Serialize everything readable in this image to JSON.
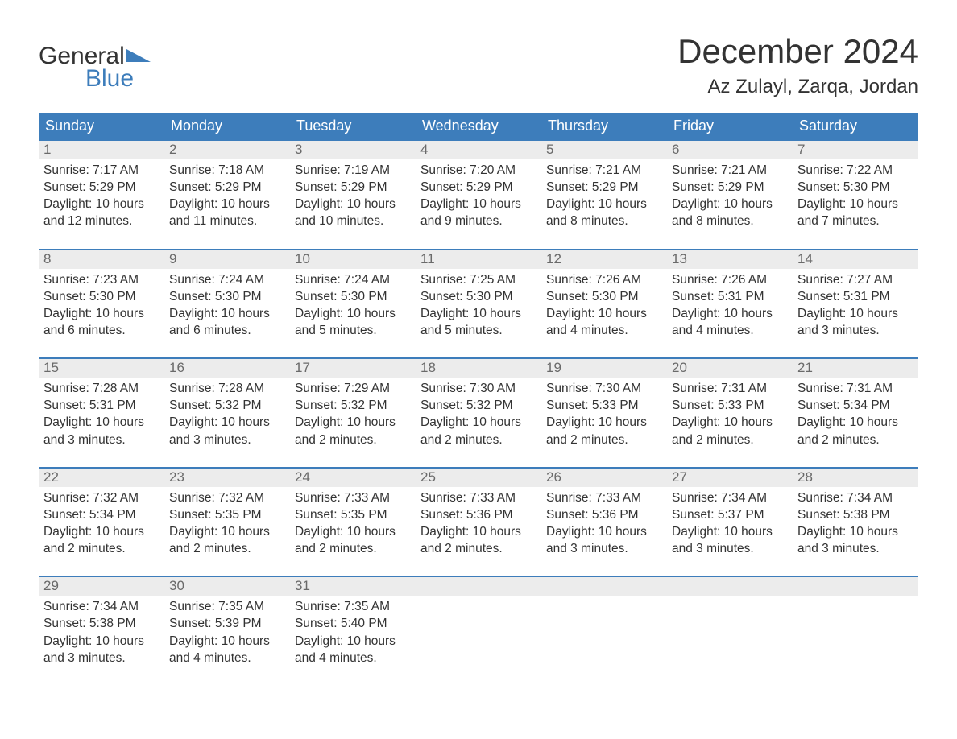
{
  "logo": {
    "word1": "General",
    "word2": "Blue"
  },
  "title": "December 2024",
  "location": "Az Zulayl, Zarqa, Jordan",
  "colors": {
    "header_bg": "#3d7dbb",
    "header_text": "#ffffff",
    "daynum_bg": "#ececec",
    "daynum_text": "#6a6a6a",
    "body_text": "#333333",
    "divider": "#3d7dbb",
    "page_bg": "#ffffff"
  },
  "daysOfWeek": [
    "Sunday",
    "Monday",
    "Tuesday",
    "Wednesday",
    "Thursday",
    "Friday",
    "Saturday"
  ],
  "weeks": [
    [
      {
        "n": "1",
        "sunrise": "Sunrise: 7:17 AM",
        "sunset": "Sunset: 5:29 PM",
        "d1": "Daylight: 10 hours",
        "d2": "and 12 minutes."
      },
      {
        "n": "2",
        "sunrise": "Sunrise: 7:18 AM",
        "sunset": "Sunset: 5:29 PM",
        "d1": "Daylight: 10 hours",
        "d2": "and 11 minutes."
      },
      {
        "n": "3",
        "sunrise": "Sunrise: 7:19 AM",
        "sunset": "Sunset: 5:29 PM",
        "d1": "Daylight: 10 hours",
        "d2": "and 10 minutes."
      },
      {
        "n": "4",
        "sunrise": "Sunrise: 7:20 AM",
        "sunset": "Sunset: 5:29 PM",
        "d1": "Daylight: 10 hours",
        "d2": "and 9 minutes."
      },
      {
        "n": "5",
        "sunrise": "Sunrise: 7:21 AM",
        "sunset": "Sunset: 5:29 PM",
        "d1": "Daylight: 10 hours",
        "d2": "and 8 minutes."
      },
      {
        "n": "6",
        "sunrise": "Sunrise: 7:21 AM",
        "sunset": "Sunset: 5:29 PM",
        "d1": "Daylight: 10 hours",
        "d2": "and 8 minutes."
      },
      {
        "n": "7",
        "sunrise": "Sunrise: 7:22 AM",
        "sunset": "Sunset: 5:30 PM",
        "d1": "Daylight: 10 hours",
        "d2": "and 7 minutes."
      }
    ],
    [
      {
        "n": "8",
        "sunrise": "Sunrise: 7:23 AM",
        "sunset": "Sunset: 5:30 PM",
        "d1": "Daylight: 10 hours",
        "d2": "and 6 minutes."
      },
      {
        "n": "9",
        "sunrise": "Sunrise: 7:24 AM",
        "sunset": "Sunset: 5:30 PM",
        "d1": "Daylight: 10 hours",
        "d2": "and 6 minutes."
      },
      {
        "n": "10",
        "sunrise": "Sunrise: 7:24 AM",
        "sunset": "Sunset: 5:30 PM",
        "d1": "Daylight: 10 hours",
        "d2": "and 5 minutes."
      },
      {
        "n": "11",
        "sunrise": "Sunrise: 7:25 AM",
        "sunset": "Sunset: 5:30 PM",
        "d1": "Daylight: 10 hours",
        "d2": "and 5 minutes."
      },
      {
        "n": "12",
        "sunrise": "Sunrise: 7:26 AM",
        "sunset": "Sunset: 5:30 PM",
        "d1": "Daylight: 10 hours",
        "d2": "and 4 minutes."
      },
      {
        "n": "13",
        "sunrise": "Sunrise: 7:26 AM",
        "sunset": "Sunset: 5:31 PM",
        "d1": "Daylight: 10 hours",
        "d2": "and 4 minutes."
      },
      {
        "n": "14",
        "sunrise": "Sunrise: 7:27 AM",
        "sunset": "Sunset: 5:31 PM",
        "d1": "Daylight: 10 hours",
        "d2": "and 3 minutes."
      }
    ],
    [
      {
        "n": "15",
        "sunrise": "Sunrise: 7:28 AM",
        "sunset": "Sunset: 5:31 PM",
        "d1": "Daylight: 10 hours",
        "d2": "and 3 minutes."
      },
      {
        "n": "16",
        "sunrise": "Sunrise: 7:28 AM",
        "sunset": "Sunset: 5:32 PM",
        "d1": "Daylight: 10 hours",
        "d2": "and 3 minutes."
      },
      {
        "n": "17",
        "sunrise": "Sunrise: 7:29 AM",
        "sunset": "Sunset: 5:32 PM",
        "d1": "Daylight: 10 hours",
        "d2": "and 2 minutes."
      },
      {
        "n": "18",
        "sunrise": "Sunrise: 7:30 AM",
        "sunset": "Sunset: 5:32 PM",
        "d1": "Daylight: 10 hours",
        "d2": "and 2 minutes."
      },
      {
        "n": "19",
        "sunrise": "Sunrise: 7:30 AM",
        "sunset": "Sunset: 5:33 PM",
        "d1": "Daylight: 10 hours",
        "d2": "and 2 minutes."
      },
      {
        "n": "20",
        "sunrise": "Sunrise: 7:31 AM",
        "sunset": "Sunset: 5:33 PM",
        "d1": "Daylight: 10 hours",
        "d2": "and 2 minutes."
      },
      {
        "n": "21",
        "sunrise": "Sunrise: 7:31 AM",
        "sunset": "Sunset: 5:34 PM",
        "d1": "Daylight: 10 hours",
        "d2": "and 2 minutes."
      }
    ],
    [
      {
        "n": "22",
        "sunrise": "Sunrise: 7:32 AM",
        "sunset": "Sunset: 5:34 PM",
        "d1": "Daylight: 10 hours",
        "d2": "and 2 minutes."
      },
      {
        "n": "23",
        "sunrise": "Sunrise: 7:32 AM",
        "sunset": "Sunset: 5:35 PM",
        "d1": "Daylight: 10 hours",
        "d2": "and 2 minutes."
      },
      {
        "n": "24",
        "sunrise": "Sunrise: 7:33 AM",
        "sunset": "Sunset: 5:35 PM",
        "d1": "Daylight: 10 hours",
        "d2": "and 2 minutes."
      },
      {
        "n": "25",
        "sunrise": "Sunrise: 7:33 AM",
        "sunset": "Sunset: 5:36 PM",
        "d1": "Daylight: 10 hours",
        "d2": "and 2 minutes."
      },
      {
        "n": "26",
        "sunrise": "Sunrise: 7:33 AM",
        "sunset": "Sunset: 5:36 PM",
        "d1": "Daylight: 10 hours",
        "d2": "and 3 minutes."
      },
      {
        "n": "27",
        "sunrise": "Sunrise: 7:34 AM",
        "sunset": "Sunset: 5:37 PM",
        "d1": "Daylight: 10 hours",
        "d2": "and 3 minutes."
      },
      {
        "n": "28",
        "sunrise": "Sunrise: 7:34 AM",
        "sunset": "Sunset: 5:38 PM",
        "d1": "Daylight: 10 hours",
        "d2": "and 3 minutes."
      }
    ],
    [
      {
        "n": "29",
        "sunrise": "Sunrise: 7:34 AM",
        "sunset": "Sunset: 5:38 PM",
        "d1": "Daylight: 10 hours",
        "d2": "and 3 minutes."
      },
      {
        "n": "30",
        "sunrise": "Sunrise: 7:35 AM",
        "sunset": "Sunset: 5:39 PM",
        "d1": "Daylight: 10 hours",
        "d2": "and 4 minutes."
      },
      {
        "n": "31",
        "sunrise": "Sunrise: 7:35 AM",
        "sunset": "Sunset: 5:40 PM",
        "d1": "Daylight: 10 hours",
        "d2": "and 4 minutes."
      },
      null,
      null,
      null,
      null
    ]
  ]
}
